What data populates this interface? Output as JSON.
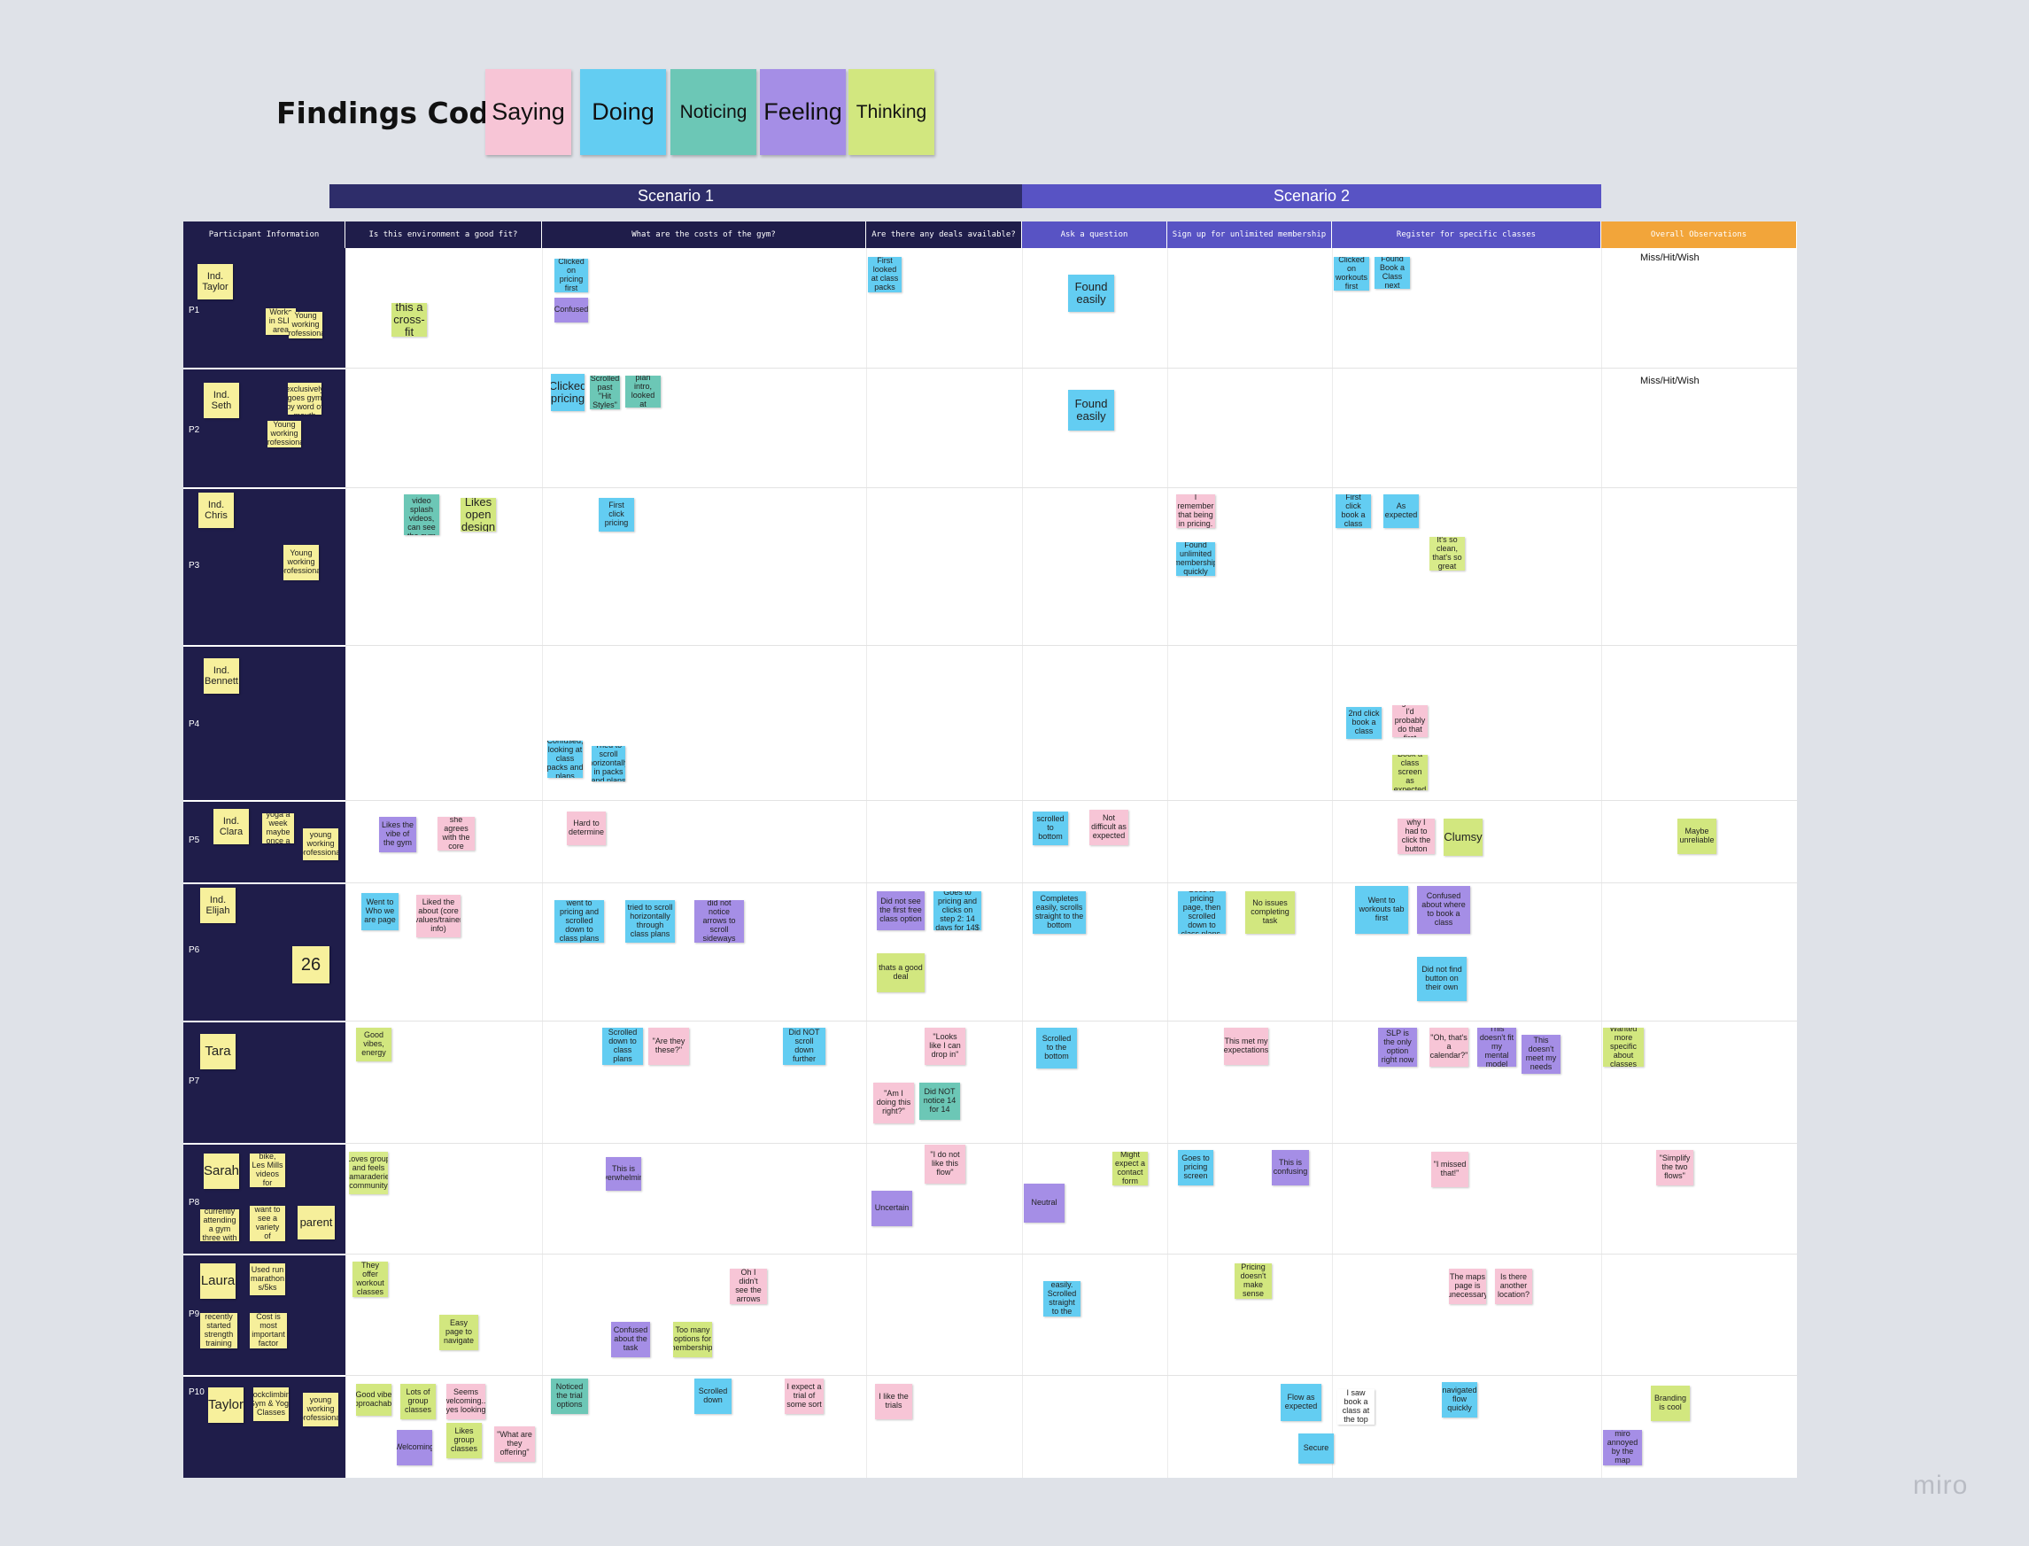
{
  "title": "Findings Code",
  "codes": [
    {
      "label": "Saying",
      "color": "#f7c5d6"
    },
    {
      "label": "Doing",
      "color": "#63cdf2"
    },
    {
      "label": "Noticing",
      "color": "#6cc7b6"
    },
    {
      "label": "Feeling",
      "color": "#a58ee6"
    },
    {
      "label": "Thinking",
      "color": "#d2e77f"
    }
  ],
  "scenarios": [
    "Scenario 1",
    "Scenario 2"
  ],
  "columns": [
    "Participant Information",
    "Is this environment a good fit?",
    "What are the costs of the gym?",
    "Are there any deals available?",
    "Ask a question",
    "Sign up for unlimited membership",
    "Register for specific classes",
    "Overall Observations"
  ],
  "participants": [
    {
      "id": "P1",
      "name": "Ind. Taylor",
      "notes": [
        "Works in SLP area",
        "Young working professional"
      ]
    },
    {
      "id": "P2",
      "name": "Ind. Seth",
      "notes": [
        "Almost exclusively goes gym by word of mouth",
        "Young working professional"
      ]
    },
    {
      "id": "P3",
      "name": "Ind. Chris",
      "notes": [
        "Young working professional"
      ]
    },
    {
      "id": "P4",
      "name": "Ind. Bennett",
      "notes": []
    },
    {
      "id": "P5",
      "name": "Ind. Clara",
      "notes": [
        "Goes to yoga a week maybe once a week",
        "young working professional"
      ]
    },
    {
      "id": "P6",
      "name": "Ind. Elijah",
      "notes": [
        "26"
      ]
    },
    {
      "id": "P7",
      "name": "Tara",
      "notes": []
    },
    {
      "id": "P8",
      "name": "Sarah",
      "notes": [
        "Peloton bike, Les Mills videos for weights",
        "Not currently attending a gym three with two kids",
        "Would want to see a variety of classes",
        "parent"
      ]
    },
    {
      "id": "P9",
      "name": "Laura",
      "notes": [
        "Used run marathon s/5ks",
        "recently started strength training",
        "Cost is most important factor"
      ]
    },
    {
      "id": "P10",
      "name": "Taylor",
      "notes": [
        "Rockclimbing Gym & Yoga Classes",
        "young working professional"
      ]
    }
  ],
  "board_notes": {
    "p1": [
      "\"Is this a cross-fit gym?\"",
      "Clicked on pricing first",
      "Confused",
      "First looked at class packs",
      "Found easily",
      "Clicked on workouts first",
      "Found Book a Class next",
      "Miss/Hit/Wish"
    ],
    "p2": [
      "Clicked pricing",
      "Scrolled past \"Hit Styles\"",
      "Ignored plan intro, looked at pricing",
      "Found easily",
      "Miss/Hit/Wish"
    ],
    "p3": [
      "Fan of video splash videos, can see the gym",
      "Likes open design",
      "First click pricing",
      "I remember that being in pricing.",
      "Found unlimited membership quickly",
      "First click book a class",
      "As expected",
      "It's so clean, that's so great"
    ],
    "p4": [
      "Confused, looking at class packs and plans",
      "Tried to scroll horizontally in packs and plans",
      "2nd click book a class",
      "I guess I'd probably do that first",
      "Book a class screen as expected"
    ],
    "p5": [
      "Likes the vibe of the gym",
      "Said that she agrees with the core values",
      "Hard to determine",
      "scrolled to bottom",
      "Not difficult as expected",
      "Not sure why I had to click the button twice",
      "Clumsy",
      "Maybe unreliable"
    ],
    "p6": [
      "Went to Who we are page",
      "Liked the about (core values/trainer info)",
      "went to pricing and scrolled down to class plans",
      "tried to scroll horizontally through class plans",
      "did not notice arrows to scroll sideways",
      "Did not see the first free class option",
      "Goes to pricing and clicks on step 2: 14 days for 14$",
      "thats a good deal",
      "Completes easily, scrolls straight to the bottom",
      "Goes to pricing page, then scrolled down to class plans.",
      "No issues completing task",
      "Went to workouts tab first",
      "Confused about where to book a class",
      "Did not find button on their own"
    ],
    "p7": [
      "Good vibes, energy",
      "Scrolled down to class plans",
      "\"Are they these?\"",
      "Did NOT scroll down further",
      "\"Looks like I can drop in\"",
      "\"Am I doing this right?\"",
      "Did NOT notice 14 for 14",
      "Scrolled to the bottom",
      "This met my expectations",
      "SLP is the only option right now",
      "\"Oh, that's a calendar?\"",
      "This doesn't fit my mental model",
      "This doesn't meet my needs",
      "Wanted more specific about classes"
    ],
    "p8": [
      "Loves group and feels camaraderie, community",
      "This is overwhelming",
      "\"I do not like this flow\"",
      "Uncertain",
      "Neutral",
      "Might expect a contact form",
      "Goes to pricing screen",
      "This is confusing",
      "\"I missed that!\"",
      "\"Simplify the two flows\""
    ],
    "p9": [
      "They offer workout classes",
      "Easy page to navigate",
      "Oh I didn't see the arrows",
      "Confused about the task",
      "Too many options for memberships",
      "Found easily. Scrolled straight to the bottom",
      "Pricing doesn't make sense",
      "The maps page is unecessary",
      "Is there another location?"
    ],
    "p10": [
      "Good vibe approachable",
      "Lots of group classes",
      "Seems welcoming... yes looking",
      "Likes group classes",
      "Welcoming",
      "\"What are they offering\"",
      "Noticed the trial options",
      "Scrolled down",
      "I expect a trial of some sort",
      "I like the trials",
      "Flow as expected",
      "Secure",
      "I saw book a class at the top",
      "navigated flow quickly",
      "Branding is cool",
      "miro annoyed by the map"
    ]
  },
  "watermark": "miro"
}
